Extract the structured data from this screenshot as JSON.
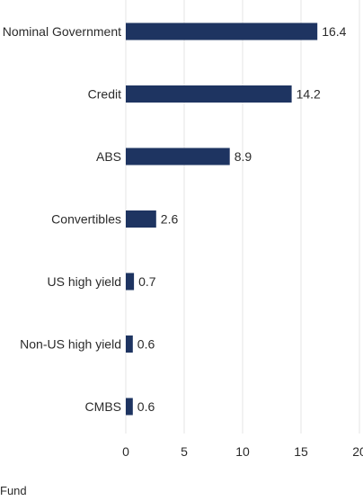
{
  "chart_data": {
    "type": "bar",
    "orientation": "horizontal",
    "categories": [
      "Nominal Government",
      "Credit",
      "ABS",
      "Convertibles",
      "US high yield",
      "Non-US high yield",
      "CMBS"
    ],
    "series": [
      {
        "name": "Fund",
        "values": [
          16.4,
          14.2,
          8.9,
          2.6,
          0.7,
          0.6,
          0.6
        ],
        "color": "#1e3461"
      }
    ],
    "value_labels": [
      "16.4",
      "14.2",
      "8.9",
      "2.6",
      "0.7",
      "0.6",
      "0.6"
    ],
    "x_ticks": [
      "0",
      "5",
      "10",
      "15",
      "20"
    ],
    "xlim": [
      0,
      20
    ],
    "grid": "vertical",
    "legend": "bottom-left",
    "title": "",
    "xlabel": "",
    "ylabel": ""
  },
  "legend": {
    "label": "Fund"
  },
  "colors": {
    "bar": "#1e3461",
    "grid": "#e6e6e6",
    "text": "#2b2b2b"
  }
}
